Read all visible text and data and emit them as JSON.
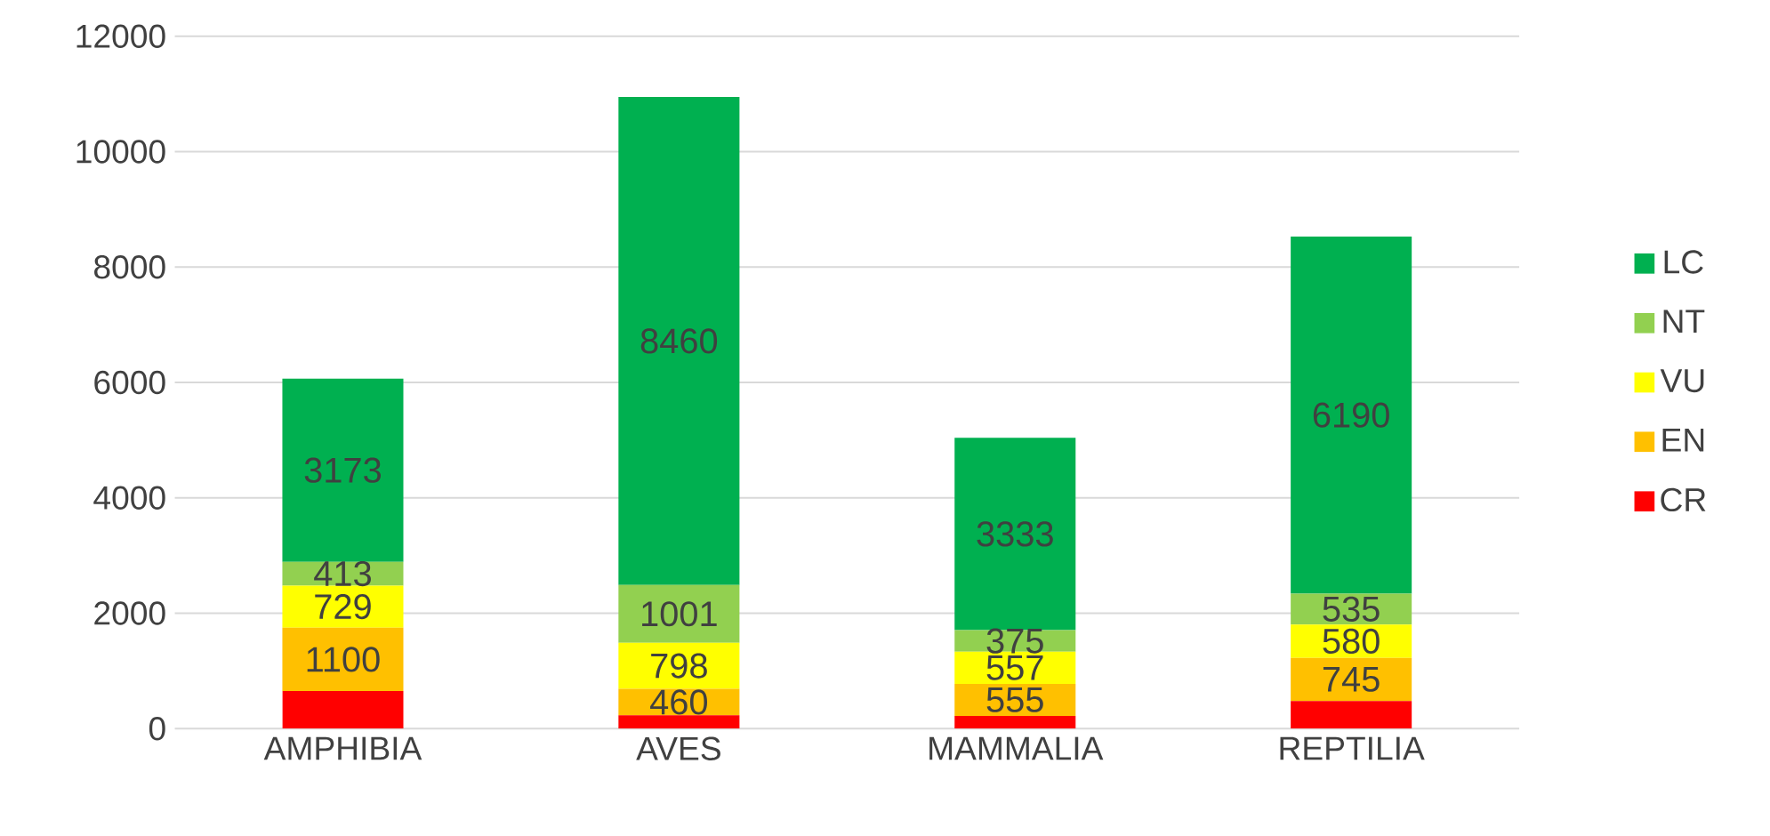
{
  "chart_data": {
    "type": "bar",
    "stacked": true,
    "categories": [
      "AMPHIBIA",
      "AVES",
      "MAMMALIA",
      "REPTILIA"
    ],
    "series": [
      {
        "name": "CR",
        "color": "#ff0000",
        "values": [
          650,
          230,
          220,
          480
        ],
        "value_labels": [
          null,
          null,
          null,
          null
        ]
      },
      {
        "name": "EN",
        "color": "#ffc000",
        "values": [
          1100,
          460,
          555,
          745
        ],
        "value_labels": [
          "1100",
          "460",
          "555",
          "745"
        ]
      },
      {
        "name": "VU",
        "color": "#ffff00",
        "values": [
          729,
          798,
          557,
          580
        ],
        "value_labels": [
          "729",
          "798",
          "557",
          "580"
        ]
      },
      {
        "name": "NT",
        "color": "#92d050",
        "values": [
          413,
          1001,
          375,
          535
        ],
        "value_labels": [
          "413",
          "1001",
          "375",
          "535"
        ]
      },
      {
        "name": "LC",
        "color": "#00b050",
        "values": [
          3173,
          8460,
          3333,
          6190
        ],
        "value_labels": [
          "3173",
          "8460",
          "3333",
          "6190"
        ]
      }
    ],
    "ylim": [
      0,
      12000
    ],
    "yticks": [
      0,
      2000,
      4000,
      6000,
      8000,
      10000,
      12000
    ],
    "grid": "y",
    "legend": "right"
  }
}
